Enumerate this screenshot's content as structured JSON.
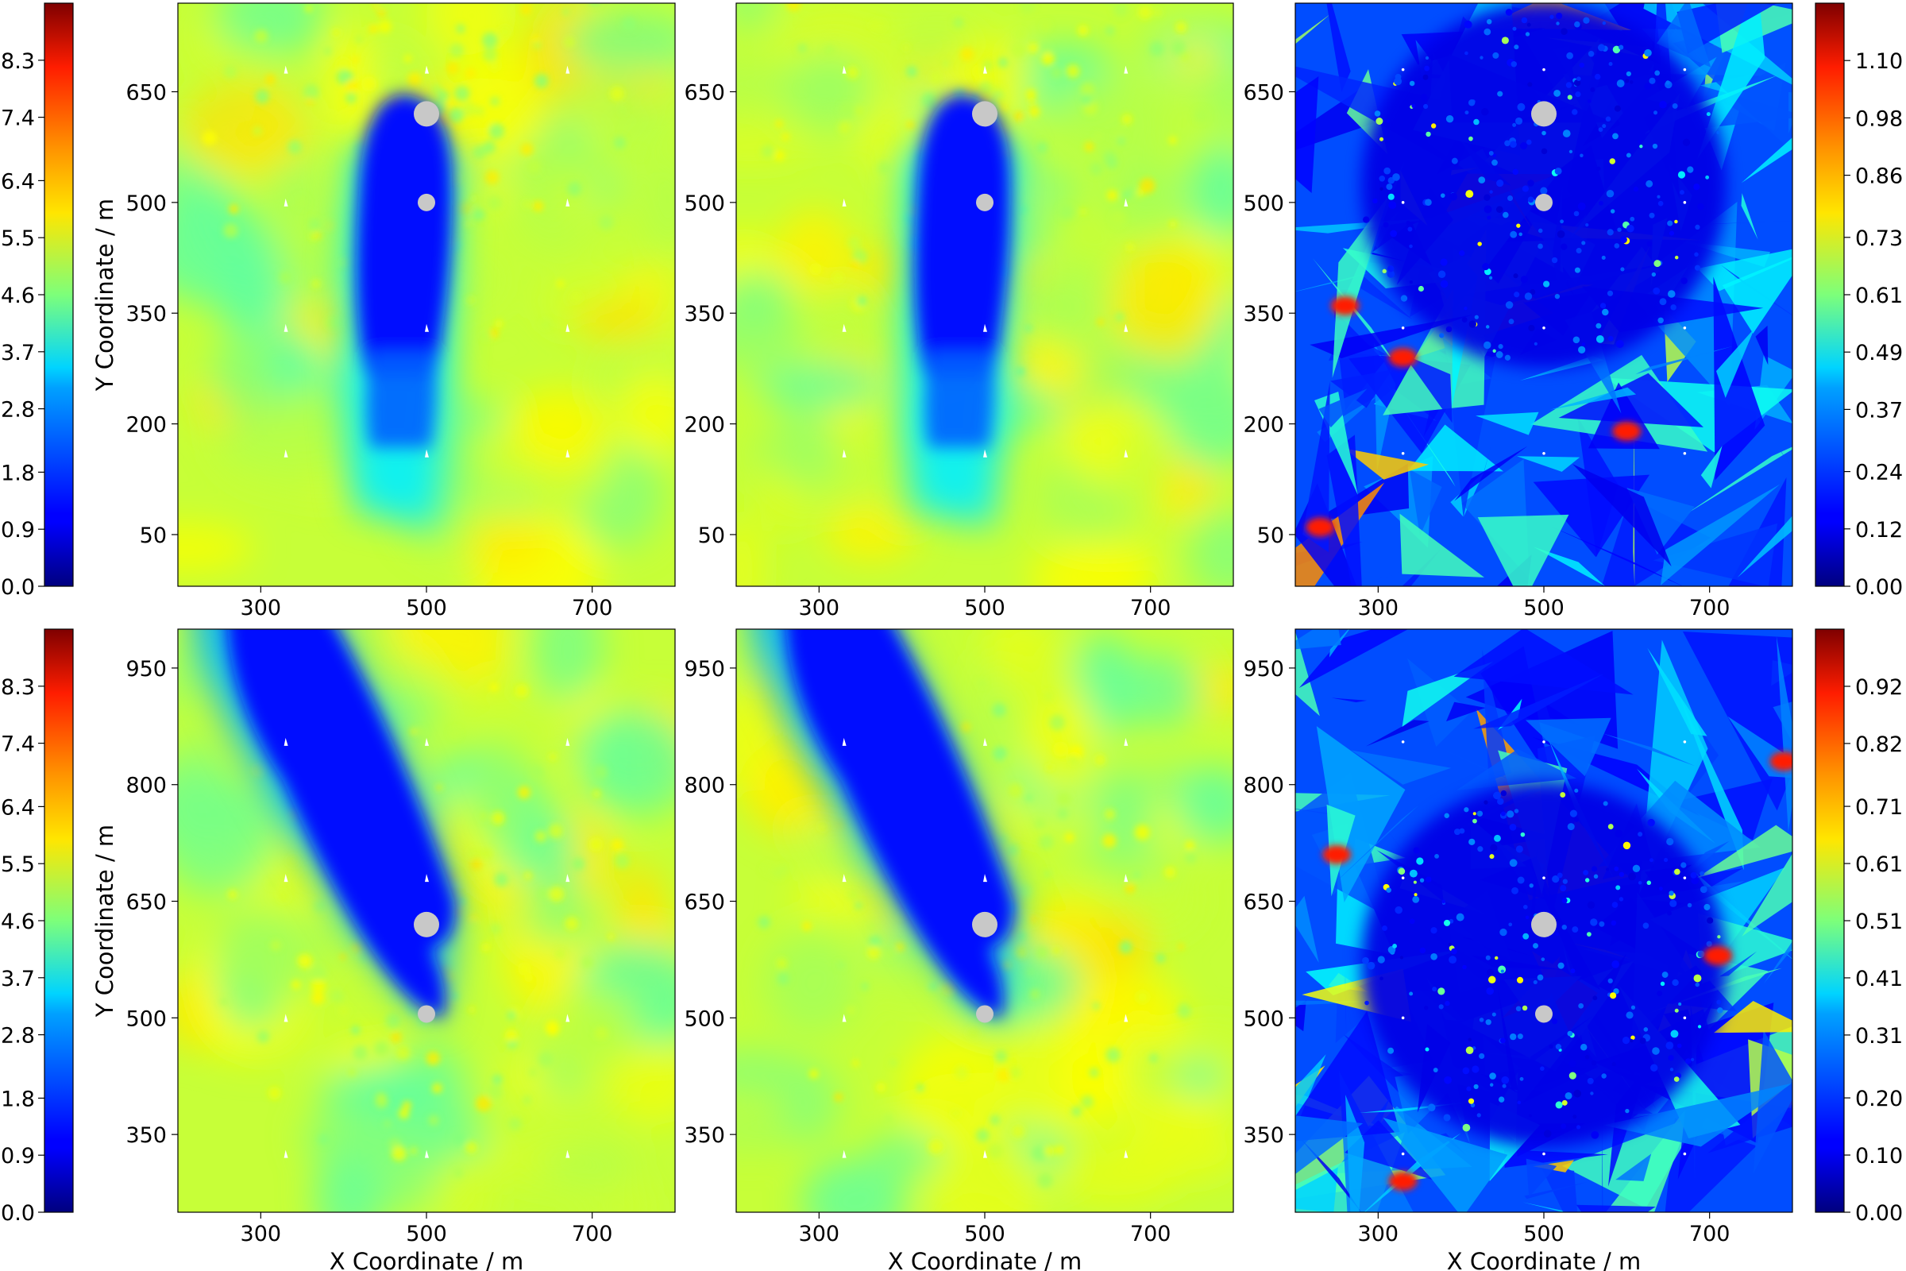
{
  "figure": {
    "colormap": "jet",
    "marker_color": "#c8c8c8",
    "frame_color": "#000000",
    "background": "#ffffff"
  },
  "chart_data": [
    {
      "type": "heatmap",
      "panel": "top-left",
      "title": "",
      "xlabel": "",
      "ylabel": "Y Coordinate / m",
      "xlim": [
        200,
        800
      ],
      "ylim": [
        -20,
        770
      ],
      "xticks": [
        "300",
        "500",
        "700"
      ],
      "yticks": [
        "50",
        "200",
        "350",
        "500",
        "650"
      ],
      "colorbar": {
        "side": "left",
        "ticks": [
          "0.0",
          "0.9",
          "1.8",
          "2.8",
          "3.7",
          "4.6",
          "5.5",
          "6.4",
          "7.4",
          "8.3"
        ],
        "range": [
          0,
          9.2
        ]
      },
      "obstacles": [
        {
          "x": 500,
          "y": 620,
          "size": "large"
        },
        {
          "x": 500,
          "y": 500,
          "size": "small"
        }
      ],
      "field": "wake extending downward (negative y) from obstacles"
    },
    {
      "type": "heatmap",
      "panel": "top-middle",
      "title": "",
      "xlabel": "",
      "ylabel": "",
      "xlim": [
        200,
        800
      ],
      "ylim": [
        -20,
        770
      ],
      "xticks": [
        "300",
        "500",
        "700"
      ],
      "yticks": [
        "50",
        "200",
        "350",
        "500",
        "650"
      ],
      "obstacles": [
        {
          "x": 500,
          "y": 620,
          "size": "large"
        },
        {
          "x": 500,
          "y": 500,
          "size": "small"
        }
      ],
      "field": "wake extending downward (negative y) from obstacles"
    },
    {
      "type": "heatmap",
      "panel": "top-right",
      "title": "",
      "xlabel": "",
      "ylabel": "",
      "xlim": [
        200,
        800
      ],
      "ylim": [
        -20,
        770
      ],
      "xticks": [
        "300",
        "500",
        "700"
      ],
      "yticks": [
        "50",
        "200",
        "350",
        "500",
        "650"
      ],
      "colorbar": {
        "side": "right",
        "ticks": [
          "0.00",
          "0.12",
          "0.24",
          "0.37",
          "0.49",
          "0.61",
          "0.73",
          "0.86",
          "0.98",
          "1.10"
        ],
        "range": [
          0,
          1.22
        ]
      },
      "obstacles": [
        {
          "x": 500,
          "y": 620,
          "size": "large"
        },
        {
          "x": 500,
          "y": 500,
          "size": "small"
        }
      ],
      "field": "error map, mostly low values with scattered high patches"
    },
    {
      "type": "heatmap",
      "panel": "bottom-left",
      "title": "",
      "xlabel": "X Coordinate / m",
      "ylabel": "Y Coordinate / m",
      "xlim": [
        200,
        800
      ],
      "ylim": [
        250,
        1000
      ],
      "xticks": [
        "300",
        "500",
        "700"
      ],
      "yticks": [
        "350",
        "500",
        "650",
        "800",
        "950"
      ],
      "colorbar": {
        "side": "left",
        "ticks": [
          "0.0",
          "0.9",
          "1.8",
          "2.8",
          "3.7",
          "4.6",
          "5.5",
          "6.4",
          "7.4",
          "8.3"
        ],
        "range": [
          0,
          9.2
        ]
      },
      "obstacles": [
        {
          "x": 500,
          "y": 620,
          "size": "large"
        },
        {
          "x": 500,
          "y": 505,
          "size": "small"
        }
      ],
      "field": "wake extending up-left from obstacles"
    },
    {
      "type": "heatmap",
      "panel": "bottom-middle",
      "title": "",
      "xlabel": "X Coordinate / m",
      "ylabel": "",
      "xlim": [
        200,
        800
      ],
      "ylim": [
        250,
        1000
      ],
      "xticks": [
        "300",
        "500",
        "700"
      ],
      "yticks": [
        "350",
        "500",
        "650",
        "800",
        "950"
      ],
      "obstacles": [
        {
          "x": 500,
          "y": 620,
          "size": "large"
        },
        {
          "x": 500,
          "y": 505,
          "size": "small"
        }
      ],
      "field": "wake extending up-left from obstacles"
    },
    {
      "type": "heatmap",
      "panel": "bottom-right",
      "title": "",
      "xlabel": "X Coordinate / m",
      "ylabel": "",
      "xlim": [
        200,
        800
      ],
      "ylim": [
        250,
        1000
      ],
      "xticks": [
        "300",
        "500",
        "700"
      ],
      "yticks": [
        "350",
        "500",
        "650",
        "800",
        "950"
      ],
      "colorbar": {
        "side": "right",
        "ticks": [
          "0.00",
          "0.10",
          "0.20",
          "0.31",
          "0.41",
          "0.51",
          "0.61",
          "0.71",
          "0.82",
          "0.92"
        ],
        "range": [
          0,
          1.02
        ]
      },
      "obstacles": [
        {
          "x": 500,
          "y": 620,
          "size": "large"
        },
        {
          "x": 500,
          "y": 505,
          "size": "small"
        }
      ],
      "field": "error map, mostly low values with scattered high patches"
    }
  ]
}
